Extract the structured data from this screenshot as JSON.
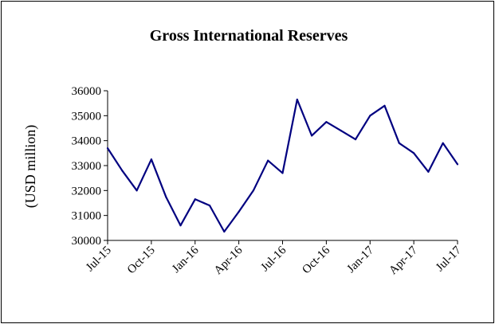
{
  "chart_data": {
    "type": "line",
    "title": "Gross International Reserves",
    "xlabel": "",
    "ylabel": "(USD million)",
    "ylim": [
      30000,
      36000
    ],
    "yticks": [
      30000,
      31000,
      32000,
      33000,
      34000,
      35000,
      36000
    ],
    "ytick_labels": [
      "30000",
      "31000",
      "32000",
      "33000",
      "34000",
      "35000",
      "36000"
    ],
    "x_tick_labels": [
      "Jul-15",
      "Oct-15",
      "Jan-16",
      "Apr-16",
      "Jul-16",
      "Oct-16",
      "Jan-17",
      "Apr-17",
      "Jul-17"
    ],
    "x_tick_every": 3,
    "x": [
      "Jul-15",
      "Aug-15",
      "Sep-15",
      "Oct-15",
      "Nov-15",
      "Dec-15",
      "Jan-16",
      "Feb-16",
      "Mar-16",
      "Apr-16",
      "May-16",
      "Jun-16",
      "Jul-16",
      "Aug-16",
      "Sep-16",
      "Oct-16",
      "Nov-16",
      "Dec-16",
      "Jan-17",
      "Feb-17",
      "Mar-17",
      "Apr-17",
      "May-17",
      "Jun-17",
      "Jul-17"
    ],
    "series": [
      {
        "values": [
          33700,
          32800,
          32000,
          33250,
          31750,
          30600,
          31650,
          31400,
          30350,
          31150,
          32000,
          33200,
          32700,
          35650,
          34200,
          34750,
          34400,
          34050,
          35000,
          35400,
          33900,
          33500,
          32750,
          33900,
          33050
        ],
        "color": "#000080"
      }
    ],
    "grid": false,
    "legend": "none"
  }
}
